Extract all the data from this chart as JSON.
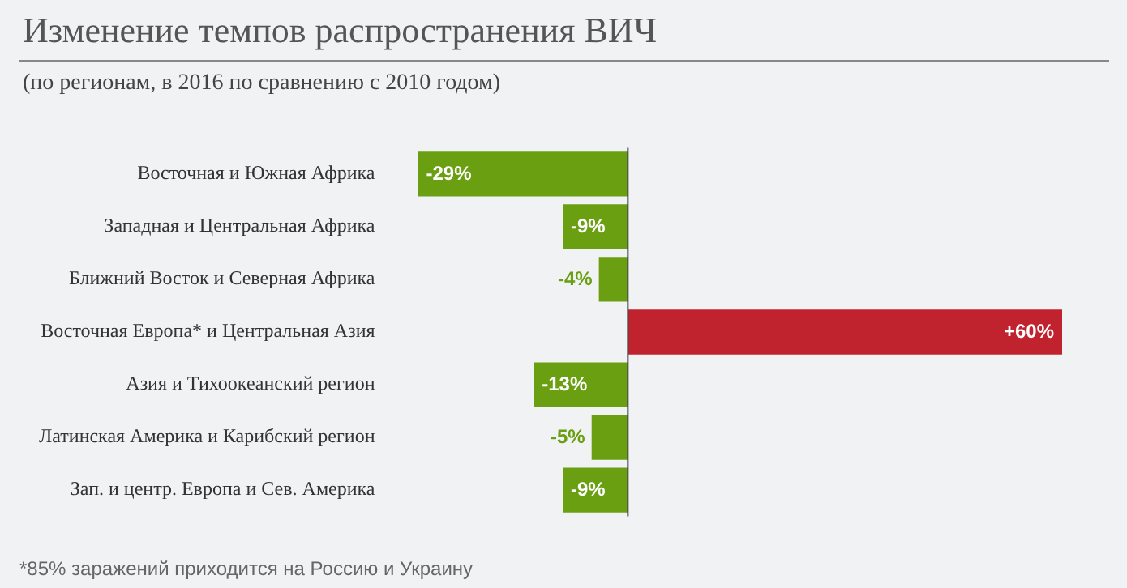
{
  "chart_data": {
    "type": "bar",
    "orientation": "horizontal",
    "title": "Изменение темпов распространения ВИЧ",
    "subtitle": "(по регионам, в 2016 по сравнению с 2010 годом)",
    "categories": [
      "Восточная и Южная Африка",
      "Западная и Центральная Африка",
      "Ближний Восток и Северная Африка",
      "Восточная Европа* и Центральная Азия",
      "Азия и Тихоокеанский регион",
      "Латинская Америка и Карибский регион",
      "Зап. и центр. Европа и Сев. Америка"
    ],
    "values": [
      -29,
      -9,
      -4,
      60,
      -13,
      -5,
      -9
    ],
    "value_labels": [
      "-29%",
      "-9%",
      "-4%",
      "+60%",
      "-13%",
      "-5%",
      "-9%"
    ],
    "colors": [
      "#6a9f12",
      "#6a9f12",
      "#6a9f12",
      "#c0222e",
      "#6a9f12",
      "#6a9f12",
      "#6a9f12"
    ],
    "annotations": [
      "*85% заражений приходится на Россию и Украину"
    ]
  }
}
